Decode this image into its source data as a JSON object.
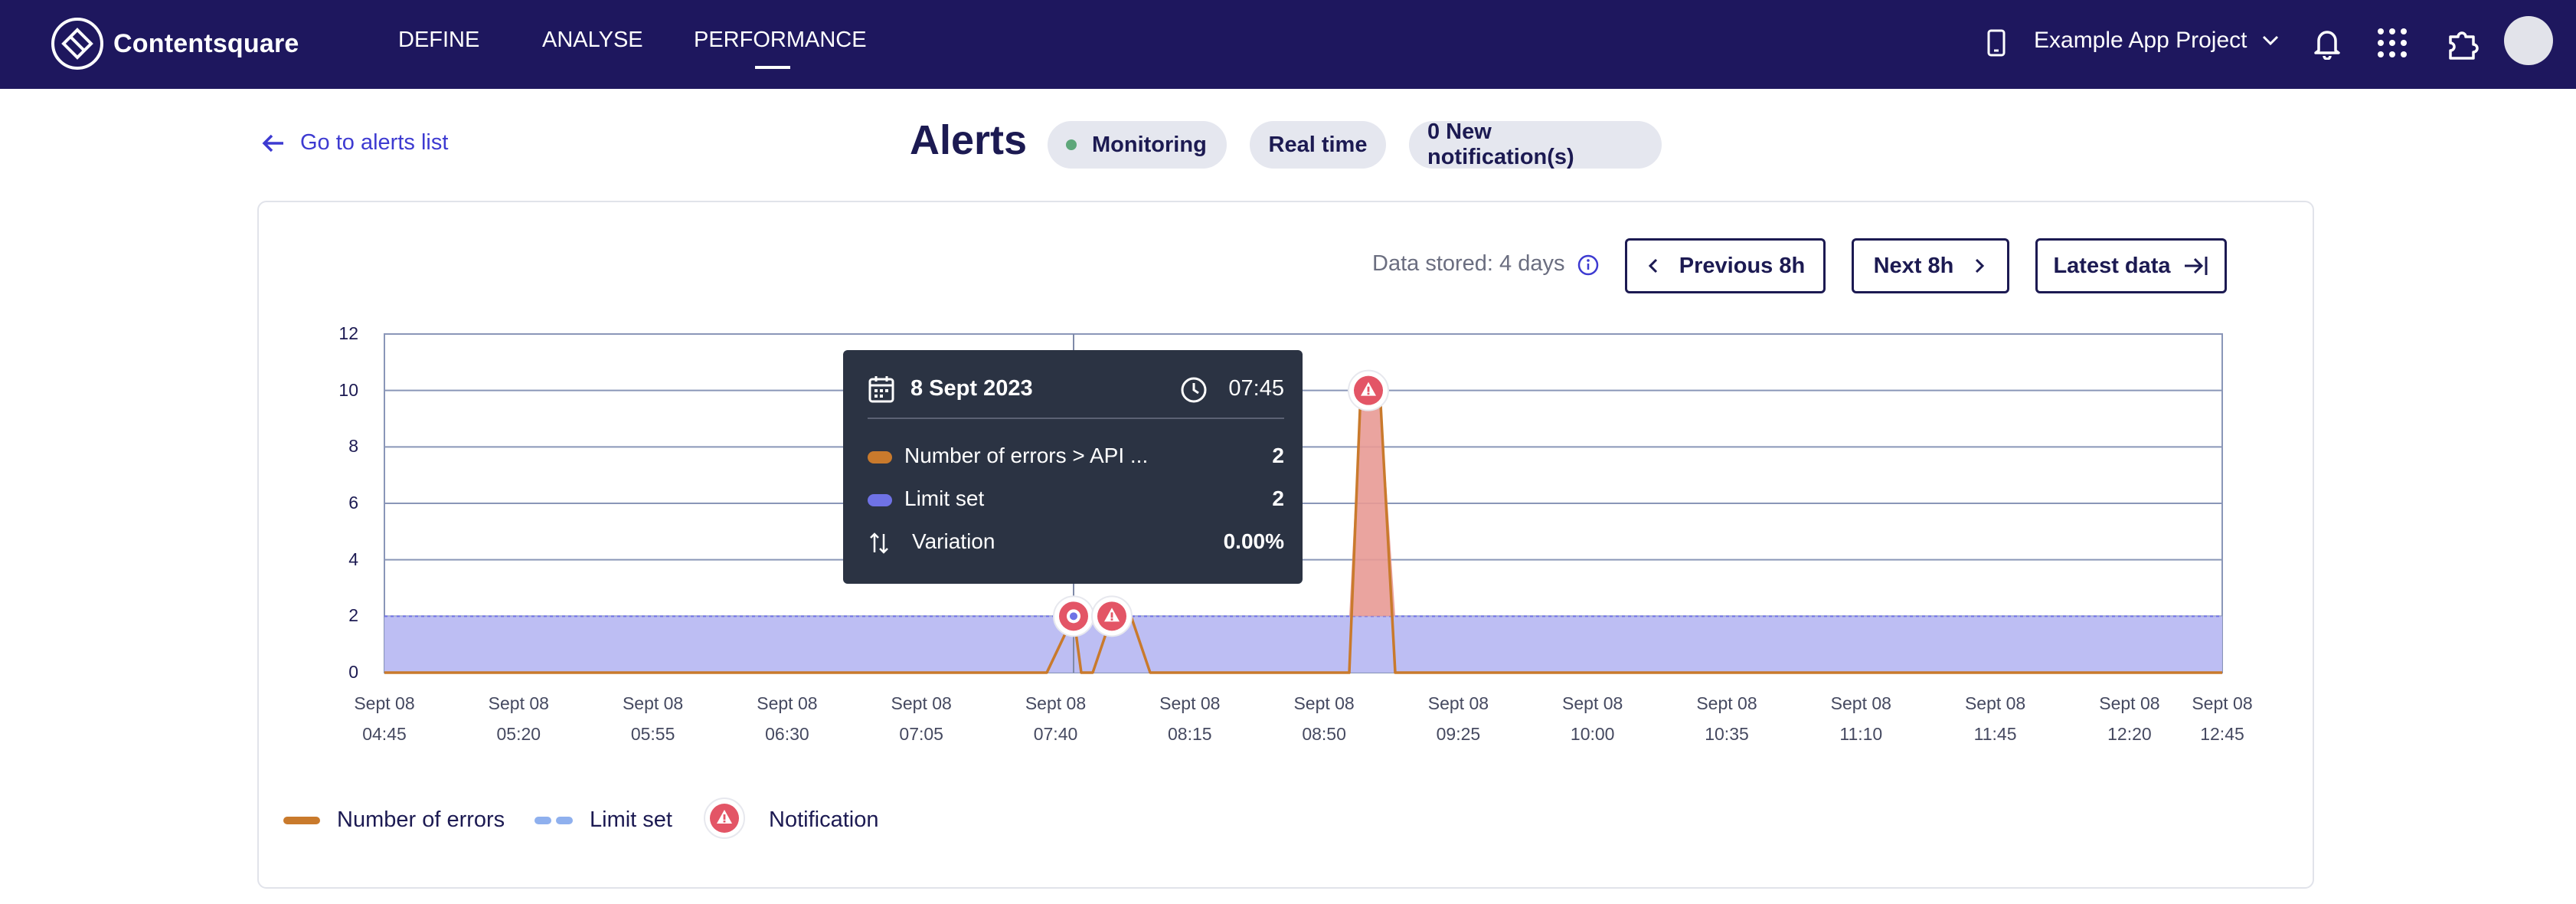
{
  "app": {
    "brand": "Contentsquare"
  },
  "nav": {
    "items": [
      "DEFINE",
      "ANALYSE",
      "PERFORMANCE"
    ],
    "active": "PERFORMANCE"
  },
  "project": {
    "name": "Example App Project"
  },
  "header": {
    "back_label": "Go to alerts list",
    "title": "Alerts",
    "status_pill": "Monitoring",
    "realtime_pill": "Real time",
    "notifications_pill": "0 New notification(s)"
  },
  "controls": {
    "data_stored": "Data stored: 4 days",
    "previous": "Previous 8h",
    "next": "Next 8h",
    "latest": "Latest data"
  },
  "colors": {
    "nav_bg": "#1e175e",
    "errors": "#c97a2c",
    "limit": "#6f72e6",
    "limit_fill": "#b9baf2",
    "notification": "#e35566",
    "tooltip_bg": "#2b3343"
  },
  "chart_data": {
    "type": "area",
    "title": "Alerts",
    "ylim": [
      0,
      12
    ],
    "y_ticks": [
      "12",
      "10",
      "8",
      "6",
      "4",
      "2",
      "0"
    ],
    "x_ticks": [
      [
        "Sept 08",
        "04:45"
      ],
      [
        "Sept 08",
        "05:20"
      ],
      [
        "Sept 08",
        "05:55"
      ],
      [
        "Sept 08",
        "06:30"
      ],
      [
        "Sept 08",
        "07:05"
      ],
      [
        "Sept 08",
        "07:40"
      ],
      [
        "Sept 08",
        "08:15"
      ],
      [
        "Sept 08",
        "08:50"
      ],
      [
        "Sept 08",
        "09:25"
      ],
      [
        "Sept 08",
        "10:00"
      ],
      [
        "Sept 08",
        "10:35"
      ],
      [
        "Sept 08",
        "11:10"
      ],
      [
        "Sept 08",
        "11:45"
      ],
      [
        "Sept 08",
        "12:20"
      ],
      [
        "Sept 08",
        "12:45"
      ]
    ],
    "x_range_minutes": [
      285,
      765
    ],
    "series": [
      {
        "name": "Number of errors",
        "points": [
          [
            285,
            0
          ],
          [
            458,
            0
          ],
          [
            465,
            2
          ],
          [
            467,
            0
          ],
          [
            470,
            0
          ],
          [
            475,
            2
          ],
          [
            480,
            2
          ],
          [
            485,
            0
          ],
          [
            537,
            0
          ],
          [
            540,
            10
          ],
          [
            545,
            10
          ],
          [
            549,
            0
          ],
          [
            765,
            0
          ]
        ]
      },
      {
        "name": "Limit set",
        "points": [
          [
            285,
            2
          ],
          [
            765,
            2
          ]
        ]
      }
    ],
    "notifications": [
      {
        "time": 465,
        "value": 2,
        "kind": "selected"
      },
      {
        "time": 475,
        "value": 2,
        "kind": "alert"
      },
      {
        "time": 542,
        "value": 10,
        "kind": "alert"
      }
    ],
    "cursor_time": 465,
    "legend": [
      "Number of errors",
      "Limit set",
      "Notification"
    ]
  },
  "tooltip": {
    "date": "8 Sept 2023",
    "time": "07:45",
    "rows": [
      {
        "label": "Number of errors > API ...",
        "value": "2"
      },
      {
        "label": "Limit set",
        "value": "2"
      },
      {
        "label": "Variation",
        "value": "0.00%"
      }
    ]
  }
}
